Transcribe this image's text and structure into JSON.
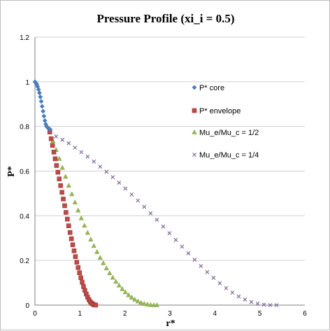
{
  "chart_data": {
    "type": "scatter",
    "title": "Pressure Profile (xi_i = 0.5)",
    "xlabel": "r*",
    "ylabel": "P*",
    "xlim": [
      0,
      6
    ],
    "ylim": [
      0,
      1.2
    ],
    "xticks": [
      "0",
      "1",
      "2",
      "3",
      "4",
      "5",
      "6"
    ],
    "yticks": [
      "0",
      "0.2",
      "0.4",
      "0.6",
      "0.8",
      "1",
      "1.2"
    ],
    "grid": true,
    "legend_position": "right",
    "series": [
      {
        "name": "P* core",
        "marker": "diamond",
        "color": "#4a7ebb",
        "x": [
          0.0,
          0.02,
          0.04,
          0.06,
          0.08,
          0.1,
          0.12,
          0.14,
          0.16,
          0.18,
          0.2,
          0.22,
          0.24,
          0.26,
          0.28,
          0.3,
          0.32,
          0.34
        ],
        "y": [
          1.0,
          0.995,
          0.988,
          0.978,
          0.965,
          0.95,
          0.932,
          0.912,
          0.89,
          0.868,
          0.846,
          0.826,
          0.81,
          0.8,
          0.795,
          0.792,
          0.789,
          0.786
        ]
      },
      {
        "name": "P* envelope",
        "marker": "square",
        "color": "#be4b48",
        "x": [
          0.33,
          0.36,
          0.39,
          0.42,
          0.45,
          0.48,
          0.51,
          0.54,
          0.57,
          0.6,
          0.63,
          0.66,
          0.69,
          0.72,
          0.75,
          0.78,
          0.81,
          0.84,
          0.87,
          0.9,
          0.93,
          0.96,
          0.99,
          1.02,
          1.05,
          1.08,
          1.11,
          1.14,
          1.17,
          1.2,
          1.23,
          1.26,
          1.29,
          1.32,
          1.35
        ],
        "y": [
          0.775,
          0.745,
          0.715,
          0.685,
          0.655,
          0.625,
          0.595,
          0.565,
          0.535,
          0.505,
          0.475,
          0.445,
          0.415,
          0.385,
          0.355,
          0.325,
          0.297,
          0.27,
          0.243,
          0.217,
          0.192,
          0.168,
          0.145,
          0.123,
          0.102,
          0.083,
          0.066,
          0.05,
          0.036,
          0.024,
          0.015,
          0.008,
          0.004,
          0.001,
          0.0
        ]
      },
      {
        "name": "Mu_e/Mu_c = 1/2",
        "marker": "triangle",
        "color": "#98b954",
        "x": [
          0.33,
          0.4,
          0.47,
          0.54,
          0.61,
          0.68,
          0.75,
          0.82,
          0.89,
          0.96,
          1.03,
          1.1,
          1.17,
          1.24,
          1.31,
          1.38,
          1.45,
          1.52,
          1.59,
          1.66,
          1.73,
          1.8,
          1.87,
          1.94,
          2.01,
          2.08,
          2.15,
          2.22,
          2.29,
          2.36,
          2.43,
          2.5,
          2.57,
          2.64,
          2.71
        ],
        "y": [
          0.775,
          0.735,
          0.695,
          0.655,
          0.615,
          0.575,
          0.535,
          0.497,
          0.46,
          0.424,
          0.389,
          0.356,
          0.324,
          0.294,
          0.265,
          0.238,
          0.212,
          0.188,
          0.165,
          0.143,
          0.123,
          0.105,
          0.088,
          0.072,
          0.058,
          0.045,
          0.034,
          0.025,
          0.017,
          0.011,
          0.006,
          0.003,
          0.001,
          0.0,
          0.0
        ]
      },
      {
        "name": "Mu_e/Mu_c = 1/4",
        "marker": "x",
        "color": "#7e6a9a",
        "x": [
          0.33,
          0.47,
          0.61,
          0.75,
          0.89,
          1.03,
          1.17,
          1.31,
          1.45,
          1.59,
          1.73,
          1.87,
          2.01,
          2.15,
          2.29,
          2.43,
          2.57,
          2.71,
          2.85,
          2.99,
          3.13,
          3.27,
          3.41,
          3.55,
          3.69,
          3.83,
          3.97,
          4.11,
          4.25,
          4.39,
          4.53,
          4.67,
          4.81,
          4.95,
          5.09,
          5.23,
          5.37
        ],
        "y": [
          0.775,
          0.755,
          0.74,
          0.725,
          0.705,
          0.685,
          0.665,
          0.643,
          0.62,
          0.597,
          0.573,
          0.548,
          0.522,
          0.495,
          0.468,
          0.44,
          0.411,
          0.382,
          0.352,
          0.322,
          0.292,
          0.262,
          0.232,
          0.203,
          0.175,
          0.148,
          0.122,
          0.098,
          0.076,
          0.056,
          0.039,
          0.025,
          0.014,
          0.006,
          0.002,
          0.0,
          0.0
        ]
      }
    ]
  }
}
